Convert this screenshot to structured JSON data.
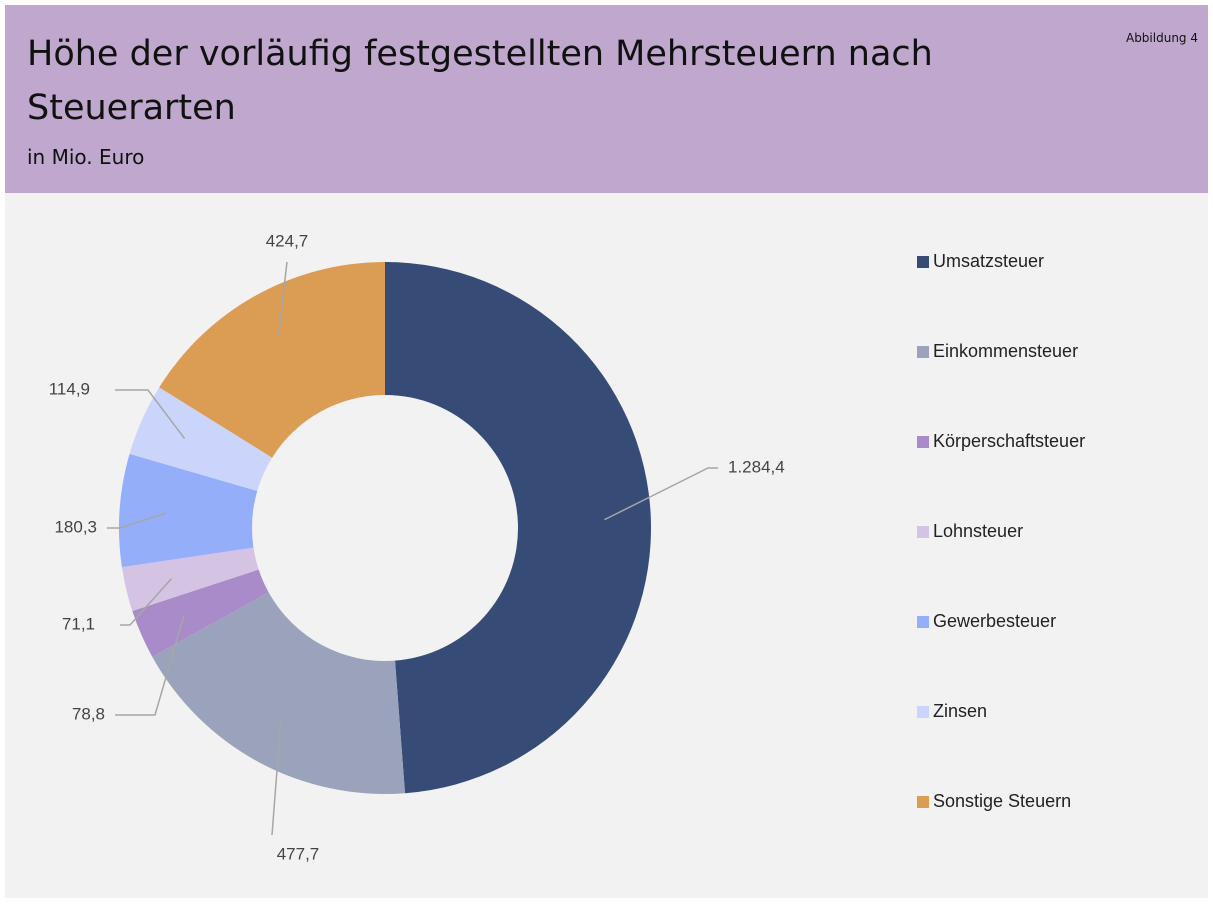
{
  "chart_data": {
    "type": "donut",
    "title": "Höhe der vorläufig festgestellten Mehrsteuern nach Steuerarten",
    "subtitle": "in Mio. Euro",
    "annotation": "Abbildung 4",
    "categories": [
      "Umsatzsteuer",
      "Einkommensteuer",
      "Körperschaftsteuer",
      "Lohnsteuer",
      "Gewerbesteuer",
      "Zinsen",
      "Sonstige Steuern"
    ],
    "values": [
      1284.4,
      477.7,
      78.8,
      71.1,
      180.3,
      114.9,
      424.7
    ],
    "value_labels": [
      "1.284,4",
      "477,7",
      "78,8",
      "71,1",
      "180,3",
      "114,9",
      "424,7"
    ],
    "colors": [
      "#374b77",
      "#9aa3bb",
      "#a98bc9",
      "#d5c3e3",
      "#94aefa",
      "#cbd5fc",
      "#db9c53"
    ],
    "legend": "right"
  }
}
